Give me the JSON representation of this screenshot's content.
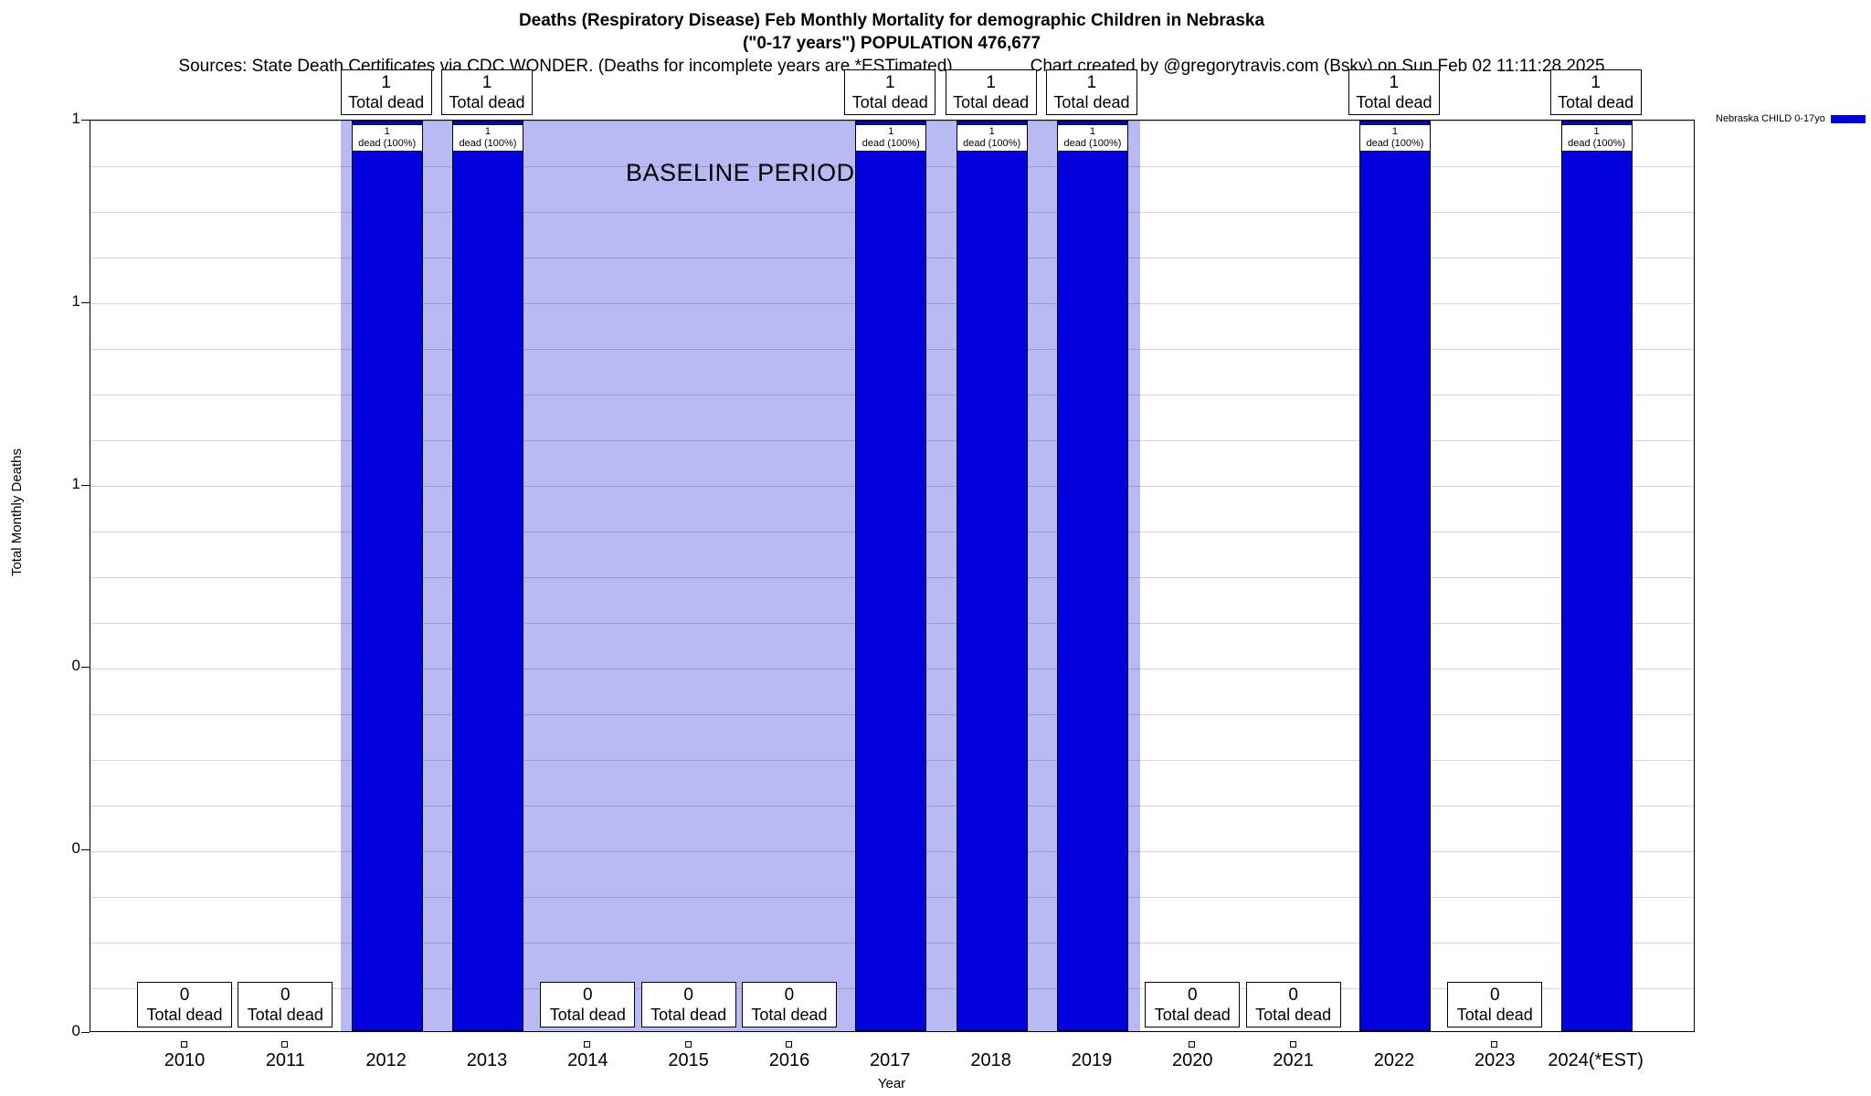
{
  "title": {
    "line1": "Deaths (Respiratory Disease) Feb Monthly Mortality for demographic Children in Nebraska",
    "line2": "(\"0-17 years\") POPULATION 476,677",
    "sources": "Sources: State Death Certificates via CDC WONDER. (Deaths for incomplete years are *ESTimated)",
    "credit": "Chart created by @gregorytravis.com (Bsky) on Sun Feb 02 11:11:28 2025"
  },
  "legend": {
    "label": "Nebraska CHILD 0-17yo",
    "swatch_color": "#0101dd"
  },
  "axes": {
    "y_label": "Total Monthly Deaths",
    "x_label": "Year",
    "y_ticks": [
      "1",
      "1",
      "1",
      "0",
      "0",
      "0"
    ]
  },
  "chart_data": {
    "type": "bar",
    "title": "Deaths (Respiratory Disease) Feb Monthly Mortality for demographic Children in Nebraska (\"0-17 years\") POPULATION 476,677",
    "xlabel": "Year",
    "ylabel": "Total Monthly Deaths",
    "ylim": [
      0,
      1
    ],
    "grid": "horizontal",
    "legend_position": "top-right",
    "categories": [
      "2010",
      "2011",
      "2012",
      "2013",
      "2014",
      "2015",
      "2016",
      "2017",
      "2018",
      "2019",
      "2020",
      "2021",
      "2022",
      "2023",
      "2024(*EST)"
    ],
    "series": [
      {
        "name": "Nebraska CHILD 0-17yo",
        "color": "#0101dd",
        "values": [
          0,
          0,
          1,
          1,
          0,
          0,
          0,
          1,
          1,
          1,
          0,
          0,
          1,
          0,
          1
        ]
      }
    ],
    "baseline_region": {
      "from": "2012",
      "to": "2019",
      "label": "BASELINE PERIOD",
      "color": "#b9b9f4"
    },
    "annotations": {
      "total_label": "Total dead",
      "bar_inner_label": "dead (100%)"
    }
  }
}
